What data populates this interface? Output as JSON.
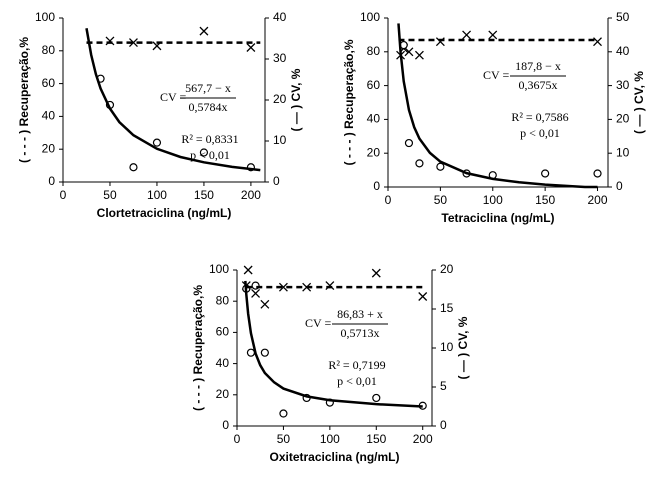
{
  "chart_data": [
    {
      "type": "scatter",
      "xlabel": "Clortetraciclina (ng/mL)",
      "ylabel": "( - - - ) Recuperação,%",
      "y2label": "( — ) CV, %",
      "xlim": [
        0,
        215
      ],
      "xticks": [
        0,
        50,
        100,
        150,
        200
      ],
      "ylim": [
        0,
        100
      ],
      "yticks": [
        0,
        20,
        40,
        60,
        80,
        100
      ],
      "y2lim": [
        0,
        40
      ],
      "y2ticks": [
        0,
        10,
        20,
        30,
        40
      ],
      "series": [
        {
          "marker": "x",
          "color": "#000000",
          "x": [
            50,
            75,
            100,
            150,
            200
          ],
          "values": [
            86,
            85,
            83,
            92,
            82
          ]
        },
        {
          "marker": "o",
          "axis": "y2",
          "color": "#000000",
          "x": [
            40,
            50,
            75,
            100,
            150,
            200
          ],
          "values": [
            25.2,
            18.8,
            3.6,
            9.6,
            7.2,
            3.6
          ]
        },
        {
          "line": "dashed",
          "color": "#000000",
          "x": [
            25,
            210
          ],
          "values": [
            85,
            85
          ]
        },
        {
          "line": "solid",
          "axis": "y2",
          "color": "#000000",
          "x": [
            25,
            30,
            35,
            40,
            50,
            60,
            75,
            100,
            125,
            150,
            180,
            210
          ],
          "values": [
            37.5,
            31.0,
            26.3,
            22.8,
            17.9,
            14.6,
            11.4,
            8.1,
            6.1,
            4.8,
            3.7,
            2.9
          ]
        }
      ],
      "annotation": {
        "lhs": "CV =",
        "numerator": "567,7 − x",
        "denominator": "0,5784x",
        "r2": "R² = 0,8331",
        "p": "p < 0,01"
      }
    },
    {
      "type": "scatter",
      "xlabel": "Tetraciclina (ng/mL)",
      "ylabel": "( - - - ) Recuperação,%",
      "y2label": "( — ) CV, %",
      "xlim": [
        0,
        210
      ],
      "xticks": [
        0,
        50,
        100,
        150,
        200
      ],
      "ylim": [
        0,
        100
      ],
      "yticks": [
        0,
        20,
        40,
        60,
        80,
        100
      ],
      "y2lim": [
        0,
        50
      ],
      "y2ticks": [
        0,
        10,
        20,
        30,
        40,
        50
      ],
      "series": [
        {
          "marker": "x",
          "color": "#000000",
          "x": [
            12,
            15,
            20,
            30,
            50,
            75,
            100,
            200
          ],
          "values": [
            78,
            82,
            80,
            78,
            86,
            90,
            90,
            86
          ]
        },
        {
          "marker": "o",
          "axis": "y2",
          "color": "#000000",
          "x": [
            15,
            20,
            30,
            50,
            75,
            100,
            150,
            200
          ],
          "values": [
            42,
            13,
            7,
            6,
            4,
            3.5,
            4,
            4
          ]
        },
        {
          "line": "dashed",
          "color": "#000000",
          "x": [
            10,
            200
          ],
          "values": [
            87,
            87
          ]
        },
        {
          "line": "solid",
          "axis": "y2",
          "color": "#000000",
          "x": [
            10,
            12,
            15,
            20,
            25,
            30,
            40,
            50,
            75,
            100,
            125,
            150,
            188,
            200
          ],
          "values": [
            48.4,
            39.9,
            31.3,
            22.8,
            17.7,
            14.3,
            10.1,
            7.5,
            4.1,
            2.4,
            1.4,
            0.7,
            0,
            0
          ]
        }
      ],
      "annotation": {
        "lhs": "CV =",
        "numerator": "187,8 − x",
        "denominator": "0,3675x",
        "r2": "R² = 0,7586",
        "p": "p < 0,01"
      }
    },
    {
      "type": "scatter",
      "xlabel": "Oxitetraciclina (ng/mL)",
      "ylabel": "( - - - ) Recuperação,%",
      "y2label": "( — ) CV, %",
      "xlim": [
        0,
        210
      ],
      "xticks": [
        0,
        50,
        100,
        150,
        200
      ],
      "ylim": [
        0,
        100
      ],
      "yticks": [
        0,
        20,
        40,
        60,
        80,
        100
      ],
      "y2lim": [
        0,
        20
      ],
      "y2ticks": [
        0,
        5,
        10,
        15,
        20
      ],
      "series": [
        {
          "marker": "x",
          "color": "#000000",
          "x": [
            10,
            12,
            20,
            30,
            50,
            75,
            100,
            150,
            200
          ],
          "values": [
            90,
            100,
            85,
            78,
            89,
            89,
            90,
            98,
            83
          ]
        },
        {
          "marker": "o",
          "axis": "y2",
          "color": "#000000",
          "x": [
            10,
            15,
            20,
            30,
            50,
            75,
            100,
            150,
            200
          ],
          "values": [
            17.6,
            9.4,
            18,
            9.4,
            1.6,
            3.6,
            3.0,
            3.6,
            2.6
          ]
        },
        {
          "line": "dashed",
          "color": "#000000",
          "x": [
            10,
            200
          ],
          "values": [
            89,
            89
          ]
        },
        {
          "line": "solid",
          "axis": "y2",
          "color": "#000000",
          "x": [
            9,
            10,
            12,
            15,
            20,
            25,
            30,
            40,
            50,
            75,
            100,
            150,
            200
          ],
          "values": [
            18.6,
            16.9,
            14.4,
            11.9,
            9.3,
            7.8,
            6.8,
            5.6,
            4.8,
            3.8,
            3.3,
            2.8,
            2.5
          ]
        }
      ],
      "annotation": {
        "lhs": "CV =",
        "numerator": "86,83 + x",
        "denominator": "0,5713x",
        "r2": "R² = 0,7199",
        "p": "p < 0,01"
      }
    }
  ]
}
